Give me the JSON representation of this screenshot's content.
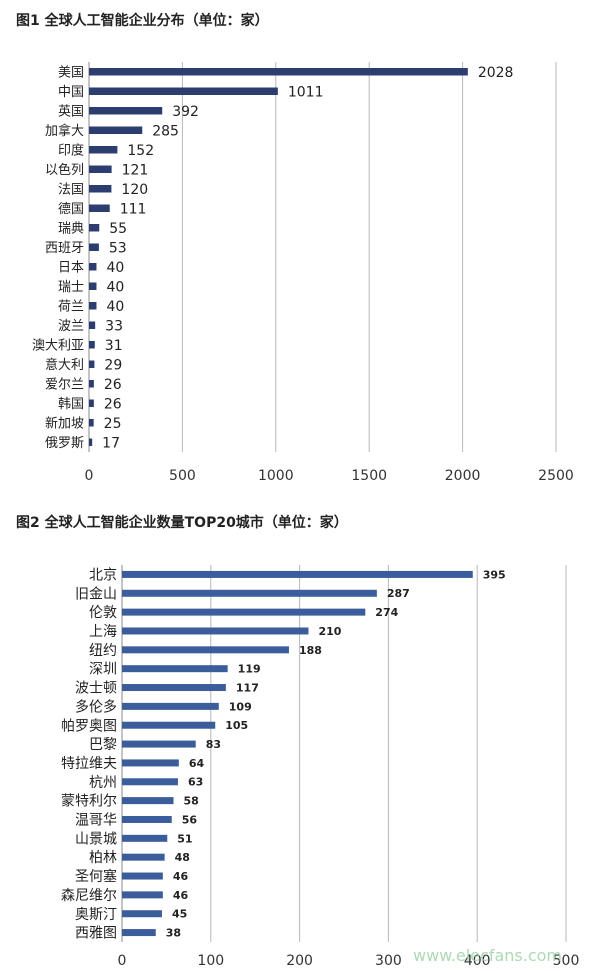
{
  "watermark": "www.elecfans.com",
  "chart_data": [
    {
      "type": "bar",
      "orientation": "horizontal",
      "title": "图1 全球人工智能企业分布（单位：家）",
      "categories": [
        "美国",
        "中国",
        "英国",
        "加拿大",
        "印度",
        "以色列",
        "法国",
        "德国",
        "瑞典",
        "西班牙",
        "日本",
        "瑞士",
        "荷兰",
        "波兰",
        "澳大利亚",
        "意大利",
        "爱尔兰",
        "韩国",
        "新加坡",
        "俄罗斯"
      ],
      "values": [
        2028,
        1011,
        392,
        285,
        152,
        121,
        120,
        111,
        55,
        53,
        40,
        40,
        40,
        33,
        31,
        29,
        26,
        26,
        25,
        17
      ],
      "xlim": [
        0,
        2500
      ],
      "xticks": [
        0,
        500,
        1000,
        1500,
        2000,
        2500
      ],
      "grid": true,
      "bar_color": "#2c3e70"
    },
    {
      "type": "bar",
      "orientation": "horizontal",
      "title": "图2 全球人工智能企业数量TOP20城市（单位：家）",
      "categories": [
        "北京",
        "旧金山",
        "伦敦",
        "上海",
        "纽约",
        "深圳",
        "波士顿",
        "多伦多",
        "帕罗奥图",
        "巴黎",
        "特拉维夫",
        "杭州",
        "蒙特利尔",
        "温哥华",
        "山景城",
        "柏林",
        "圣何塞",
        "森尼维尔",
        "奥斯汀",
        "西雅图"
      ],
      "values": [
        395,
        287,
        274,
        210,
        188,
        119,
        117,
        109,
        105,
        83,
        64,
        63,
        58,
        56,
        51,
        48,
        46,
        46,
        45,
        38
      ],
      "xlim": [
        0,
        500
      ],
      "xticks": [
        0,
        100,
        200,
        300,
        400,
        500
      ],
      "grid": true,
      "bar_color": "#3b5d9c"
    }
  ]
}
